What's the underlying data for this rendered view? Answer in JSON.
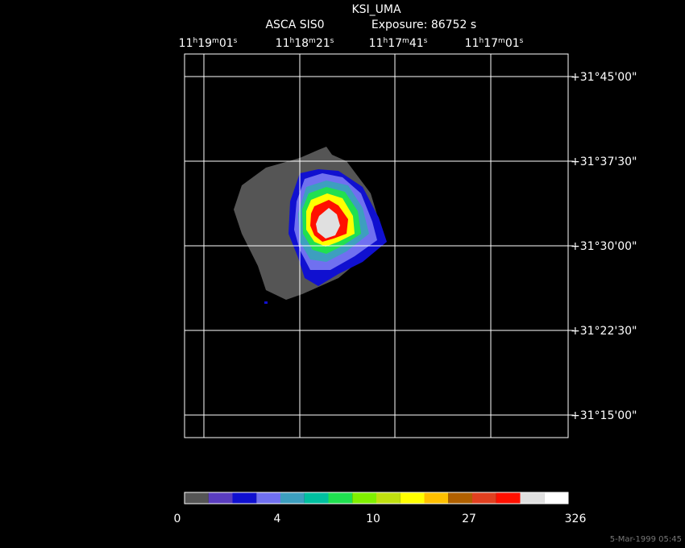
{
  "header": {
    "title": "KSI_UMA",
    "instrument": "ASCA SIS0",
    "exposure": "Exposure: 86752 s"
  },
  "ra_labels": [
    [
      "11",
      "h",
      "19",
      "m",
      "01",
      "s"
    ],
    [
      "11",
      "h",
      "18",
      "m",
      "21",
      "s"
    ],
    [
      "11",
      "h",
      "17",
      "m",
      "41",
      "s"
    ],
    [
      "11",
      "h",
      "17",
      "m",
      "01",
      "s"
    ]
  ],
  "dec_labels": [
    "+31°45'00\"",
    "+31°37'30\"",
    "+31°30'00\"",
    "+31°22'30\"",
    "+31°15'00\""
  ],
  "colorbar": {
    "colors": [
      "#555555",
      "#5a3dbf",
      "#1010d0",
      "#7070f0",
      "#3d9fbf",
      "#00c0a0",
      "#20e050",
      "#80f000",
      "#c0e010",
      "#ffff00",
      "#ffc000",
      "#b06000",
      "#e04020",
      "#ff1000",
      "#e0e0e0",
      "#ffffff"
    ],
    "labels": [
      "0",
      "4",
      "10",
      "27",
      "326"
    ]
  },
  "timestamp": "5-Mar-1999 05:45"
}
